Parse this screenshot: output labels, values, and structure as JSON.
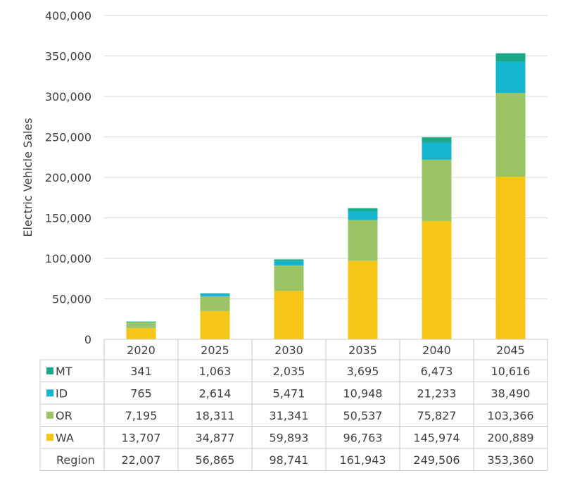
{
  "chart_data": {
    "type": "bar",
    "stacked": true,
    "ylabel": "Electric Vehicle Sales",
    "ylim": [
      0,
      400000
    ],
    "yticks": [
      0,
      50000,
      100000,
      150000,
      200000,
      250000,
      300000,
      350000,
      400000
    ],
    "ytick_labels": [
      "0",
      "50,000",
      "100,000",
      "150,000",
      "200,000",
      "250,000",
      "300,000",
      "350,000",
      "400,000"
    ],
    "grid": true,
    "categories": [
      "2020",
      "2025",
      "2030",
      "2035",
      "2040",
      "2045"
    ],
    "series": [
      {
        "name": "MT",
        "color": "#1aa888",
        "values": [
          341,
          1063,
          2035,
          3695,
          6473,
          10616
        ],
        "labels": [
          "341",
          "1,063",
          "2,035",
          "3,695",
          "6,473",
          "10,616"
        ]
      },
      {
        "name": "ID",
        "color": "#16b5cf",
        "values": [
          765,
          2614,
          5471,
          10948,
          21233,
          38490
        ],
        "labels": [
          "765",
          "2,614",
          "5,471",
          "10,948",
          "21,233",
          "38,490"
        ]
      },
      {
        "name": "OR",
        "color": "#9bc464",
        "values": [
          7195,
          18311,
          31341,
          50537,
          75827,
          103366
        ],
        "labels": [
          "7,195",
          "18,311",
          "31,341",
          "50,537",
          "75,827",
          "103,366"
        ]
      },
      {
        "name": "WA",
        "color": "#f5c518",
        "values": [
          13707,
          34877,
          59893,
          96763,
          145974,
          200889
        ],
        "labels": [
          "13,707",
          "34,877",
          "59,893",
          "96,763",
          "145,974",
          "200,889"
        ]
      }
    ],
    "stack_order_bottom_to_top": [
      "WA",
      "OR",
      "ID",
      "MT"
    ],
    "total_row": {
      "name": "Region",
      "labels": [
        "22,007",
        "56,865",
        "98,741",
        "161,943",
        "249,506",
        "353,360"
      ]
    },
    "legend": "data-table"
  }
}
